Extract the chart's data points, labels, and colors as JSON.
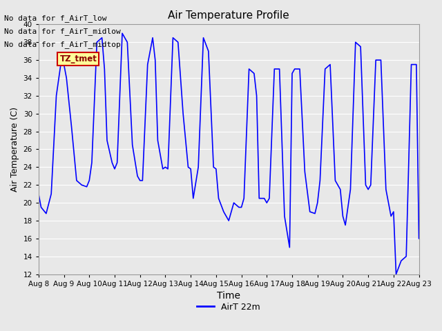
{
  "title": "Air Temperature Profile",
  "xlabel": "Time",
  "ylabel": "Air Temperature (C)",
  "ylim": [
    12,
    40
  ],
  "yticks": [
    12,
    14,
    16,
    18,
    20,
    22,
    24,
    26,
    28,
    30,
    32,
    34,
    36,
    38,
    40
  ],
  "line_color": "#0000FF",
  "line_width": 1.2,
  "fig_bg_color": "#E8E8E8",
  "plot_bg_color": "#E8E8E8",
  "grid_color": "#FFFFFF",
  "legend_label": "AirT 22m",
  "no_data_texts": [
    "No data for f_AirT_low",
    "No data for f_AirT_midlow",
    "No data for f_AirT_midtop"
  ],
  "legend_box_color": "#FFFF99",
  "legend_box_border": "#CC0000",
  "legend_box_text": "TZ_tmet",
  "x_labels": [
    "Aug 8",
    "Aug 9",
    "Aug 10",
    "Aug 11",
    "Aug 12",
    "Aug 13",
    "Aug 14",
    "Aug 15",
    "Aug 16",
    "Aug 17",
    "Aug 18",
    "Aug 19",
    "Aug 20",
    "Aug 21",
    "Aug 22",
    "Aug 23"
  ],
  "n_days": 15,
  "data_x": [
    0.0,
    0.1,
    0.3,
    0.5,
    0.7,
    0.9,
    1.0,
    1.1,
    1.3,
    1.5,
    1.7,
    1.9,
    2.0,
    2.1,
    2.3,
    2.5,
    2.6,
    2.7,
    2.9,
    3.0,
    3.1,
    3.3,
    3.5,
    3.7,
    3.9,
    4.0,
    4.1,
    4.3,
    4.5,
    4.6,
    4.7,
    4.9,
    5.0,
    5.1,
    5.3,
    5.5,
    5.7,
    5.9,
    6.0,
    6.1,
    6.3,
    6.5,
    6.7,
    6.9,
    7.0,
    7.1,
    7.3,
    7.5,
    7.7,
    7.9,
    8.0,
    8.1,
    8.3,
    8.5,
    8.6,
    8.7,
    8.9,
    9.0,
    9.1,
    9.3,
    9.5,
    9.7,
    9.9,
    10.0,
    10.1,
    10.3,
    10.5,
    10.7,
    10.9,
    11.0,
    11.1,
    11.3,
    11.5,
    11.7,
    11.9,
    12.0,
    12.1,
    12.3,
    12.5,
    12.7,
    12.9,
    13.0,
    13.1,
    13.3,
    13.5,
    13.7,
    13.9,
    14.0,
    14.1,
    14.3,
    14.5,
    14.7,
    14.9,
    15.0
  ],
  "data_y": [
    21.0,
    19.5,
    18.8,
    21.0,
    32.0,
    36.0,
    35.5,
    34.0,
    28.5,
    22.5,
    22.0,
    21.8,
    22.5,
    24.5,
    38.0,
    38.5,
    35.0,
    27.0,
    24.5,
    23.8,
    24.5,
    39.0,
    38.0,
    26.5,
    23.0,
    22.5,
    22.5,
    35.5,
    38.5,
    36.0,
    27.0,
    23.8,
    24.0,
    23.8,
    38.5,
    38.0,
    30.0,
    24.0,
    23.8,
    20.5,
    24.0,
    38.5,
    37.0,
    24.0,
    23.8,
    20.5,
    19.0,
    18.0,
    20.0,
    19.5,
    19.5,
    20.5,
    35.0,
    34.5,
    32.0,
    20.5,
    20.5,
    20.0,
    20.5,
    35.0,
    35.0,
    18.5,
    15.0,
    34.5,
    35.0,
    35.0,
    23.5,
    19.0,
    18.8,
    20.0,
    22.5,
    35.0,
    35.5,
    22.5,
    21.5,
    18.5,
    17.5,
    21.5,
    38.0,
    37.5,
    22.0,
    21.5,
    22.0,
    36.0,
    36.0,
    21.5,
    18.5,
    19.0,
    12.0,
    13.5,
    14.0,
    35.5,
    35.5,
    16.0
  ]
}
